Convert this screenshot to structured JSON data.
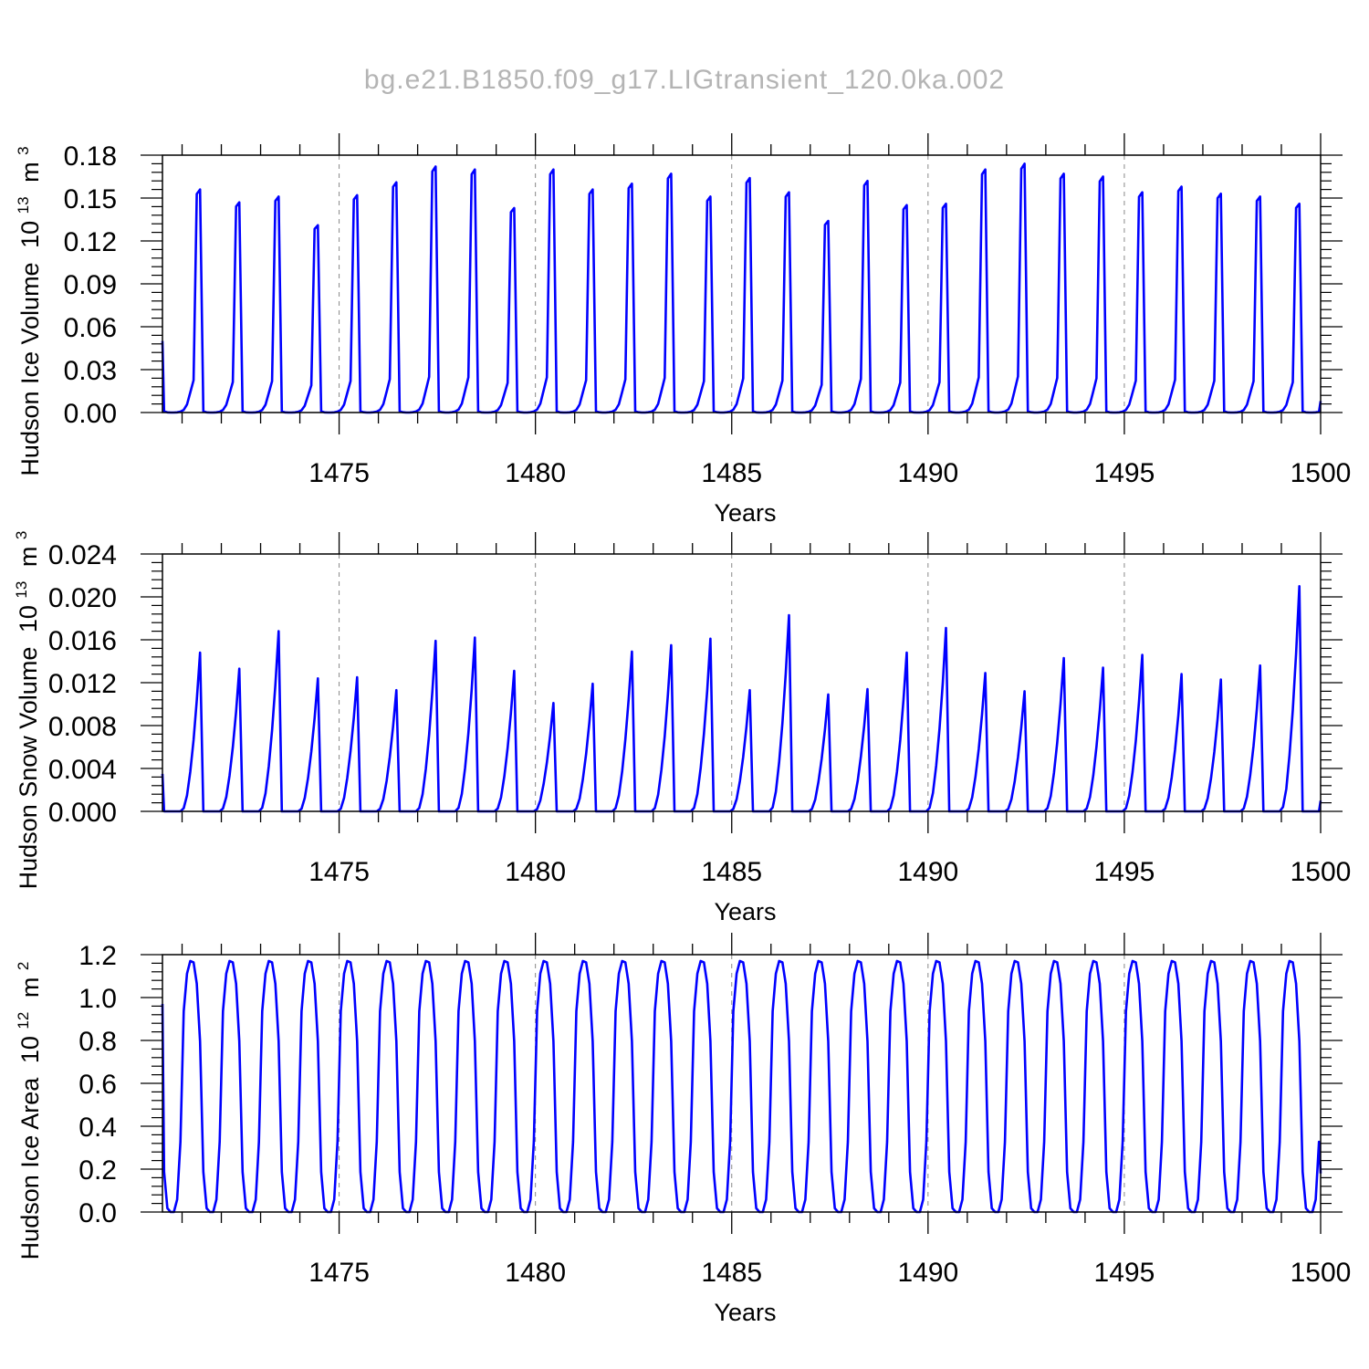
{
  "figure": {
    "title": "bg.e21.B1850.f09_g17.LIGtransient_120.0ka.002",
    "line_color": "#0000ff",
    "frame_color": "#000000",
    "grid_color": "#888888",
    "title_color": "#b4b4b4"
  },
  "chart_data": [
    {
      "type": "line",
      "xlabel": "Years",
      "ylabel": "Hudson Ice Volume",
      "yunit_base": "10",
      "yunit_exp": "13",
      "yunit_tail": "m",
      "yunit_tail_exp": "3",
      "xlim": [
        1470.5,
        1500.0
      ],
      "ylim": [
        0.0,
        0.18
      ],
      "xticks": [
        1475,
        1480,
        1485,
        1490,
        1495,
        1500
      ],
      "xtick_labels": [
        "1475",
        "1480",
        "1485",
        "1490",
        "1495",
        "1500"
      ],
      "yticks": [
        0.0,
        0.03,
        0.06,
        0.09,
        0.12,
        0.15,
        0.18
      ],
      "ytick_labels": [
        "0.00",
        "0.03",
        "0.06",
        "0.09",
        "0.12",
        "0.15",
        "0.18"
      ],
      "grid": "vertical dashed at major x ticks",
      "seasonal_cycle": [
        0.005,
        0.001,
        0.0,
        0.0,
        0.001,
        0.004,
        0.012,
        0.036,
        0.09,
        0.145,
        0.98,
        1.0
      ],
      "series": [
        {
          "peaks": [
            0.156,
            0.147,
            0.151,
            0.131,
            0.152,
            0.161,
            0.172,
            0.17,
            0.143,
            0.17,
            0.156,
            0.16,
            0.167,
            0.151,
            0.164,
            0.154,
            0.134,
            0.162,
            0.145,
            0.146,
            0.17,
            0.174,
            0.167,
            0.165,
            0.154,
            0.158,
            0.153,
            0.151,
            0.146,
            0.148
          ],
          "x_start": 1470.5,
          "x_end": 1500.0,
          "y_start": 0.05,
          "y_end": 0.008
        }
      ]
    },
    {
      "type": "line",
      "xlabel": "Years",
      "ylabel": "Hudson Snow Volume",
      "yunit_base": "10",
      "yunit_exp": "13",
      "yunit_tail": "m",
      "yunit_tail_exp": "3",
      "xlim": [
        1470.5,
        1500.0
      ],
      "ylim": [
        0.0,
        0.024
      ],
      "xticks": [
        1475,
        1480,
        1485,
        1490,
        1495,
        1500
      ],
      "xtick_labels": [
        "1475",
        "1480",
        "1485",
        "1490",
        "1495",
        "1500"
      ],
      "yticks": [
        0.0,
        0.004,
        0.008,
        0.012,
        0.016,
        0.02,
        0.024
      ],
      "ytick_labels": [
        "0.000",
        "0.004",
        "0.008",
        "0.012",
        "0.016",
        "0.020",
        "0.024"
      ],
      "grid": "vertical dashed at major x ticks",
      "seasonal_cycle": [
        0.0,
        0.0,
        0.0,
        0.0,
        0.0,
        0.0,
        0.02,
        0.1,
        0.25,
        0.45,
        0.7,
        1.0
      ],
      "series": [
        {
          "peaks": [
            0.0148,
            0.0133,
            0.0168,
            0.0124,
            0.0125,
            0.0113,
            0.0159,
            0.0162,
            0.0131,
            0.0101,
            0.0119,
            0.0149,
            0.0155,
            0.0161,
            0.0113,
            0.0183,
            0.0109,
            0.0114,
            0.0148,
            0.0171,
            0.0129,
            0.0112,
            0.0143,
            0.0134,
            0.0146,
            0.0128,
            0.0123,
            0.0136,
            0.021,
            0.0148
          ],
          "x_start": 1470.5,
          "x_end": 1500.0,
          "y_start": 0.0035,
          "y_end": 0.001
        }
      ]
    },
    {
      "type": "line",
      "xlabel": "Years",
      "ylabel": "Hudson Ice Area",
      "yunit_base": "10",
      "yunit_exp": "12",
      "yunit_tail": "m",
      "yunit_tail_exp": "2",
      "xlim": [
        1470.5,
        1500.0
      ],
      "ylim": [
        0.0,
        1.2
      ],
      "xticks": [
        1475,
        1480,
        1485,
        1490,
        1495,
        1500
      ],
      "xtick_labels": [
        "1475",
        "1480",
        "1485",
        "1490",
        "1495",
        "1500"
      ],
      "yticks": [
        0.0,
        0.2,
        0.4,
        0.6,
        0.8,
        1.0,
        1.2
      ],
      "ytick_labels": [
        "0.0",
        "0.2",
        "0.4",
        "0.6",
        "0.8",
        "1.0",
        "1.2"
      ],
      "grid": "vertical dashed at major x ticks",
      "seasonal_cycle": [
        0.16,
        0.015,
        0.0,
        0.0,
        0.05,
        0.28,
        0.8,
        0.95,
        1.0,
        0.995,
        0.91,
        0.68
      ],
      "series": [
        {
          "peaks": [
            1.17,
            1.17,
            1.17,
            1.17,
            1.17,
            1.17,
            1.17,
            1.17,
            1.17,
            1.17,
            1.17,
            1.17,
            1.17,
            1.17,
            1.17,
            1.17,
            1.17,
            1.17,
            1.17,
            1.17,
            1.17,
            1.17,
            1.17,
            1.17,
            1.17,
            1.17,
            1.17,
            1.17,
            1.17,
            1.17
          ],
          "x_start": 1470.5,
          "x_end": 1500.0,
          "y_start": 0.97,
          "y_end": 0.18
        }
      ]
    }
  ]
}
